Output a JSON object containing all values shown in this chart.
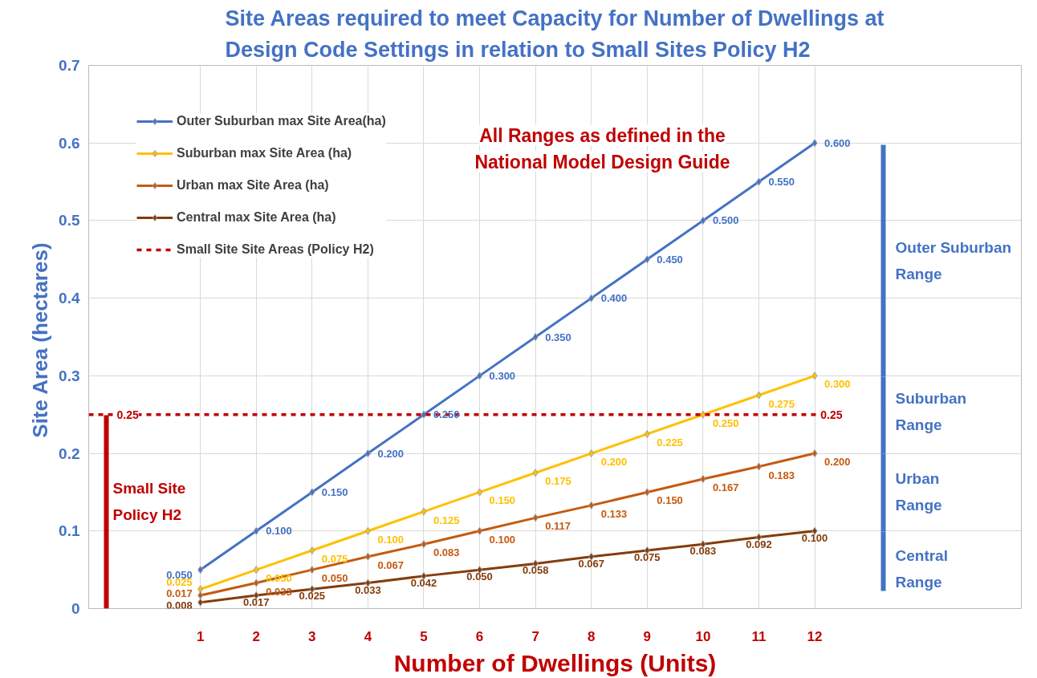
{
  "chart_data": {
    "type": "line",
    "title": "Site Areas required to meet Capacity for Number of Dwellings at\nDesign Code Settings in relation to Small Sites Policy H2",
    "xlabel": "Number of Dwellings (Units)",
    "ylabel": "Site Area  (hectares)",
    "x": [
      1,
      2,
      3,
      4,
      5,
      6,
      7,
      8,
      9,
      10,
      11,
      12
    ],
    "series": [
      {
        "name": "Outer Suburban max Site Area(ha)",
        "color": "#4472c4",
        "values": [
          0.05,
          0.1,
          0.15,
          0.2,
          0.25,
          0.3,
          0.35,
          0.4,
          0.45,
          0.5,
          0.55,
          0.6
        ],
        "value_labels": [
          "0.050",
          "0.100",
          "0.150",
          "0.200",
          "0.250",
          "0.300",
          "0.350",
          "0.400",
          "0.450",
          "0.500",
          "0.550",
          "0.600"
        ]
      },
      {
        "name": "Suburban max Site Area (ha)",
        "color": "#ffc000",
        "values": [
          0.025,
          0.05,
          0.075,
          0.1,
          0.125,
          0.15,
          0.175,
          0.2,
          0.225,
          0.25,
          0.275,
          0.3
        ],
        "value_labels": [
          "0.025",
          "0.050",
          "0.075",
          "0.100",
          "0.125",
          "0.150",
          "0.175",
          "0.200",
          "0.225",
          "0.250",
          "0.275",
          "0.300"
        ]
      },
      {
        "name": "Urban max Site Area (ha)",
        "color": "#c55a11",
        "values": [
          0.017,
          0.033,
          0.05,
          0.067,
          0.083,
          0.1,
          0.117,
          0.133,
          0.15,
          0.167,
          0.183,
          0.2
        ],
        "value_labels": [
          "0.017",
          "0.033",
          "0.050",
          "0.067",
          "0.083",
          "0.100",
          "0.117",
          "0.133",
          "0.150",
          "0.167",
          "0.183",
          "0.200"
        ]
      },
      {
        "name": "Central max Site Area (ha)",
        "color": "#843c0c",
        "values": [
          0.008,
          0.017,
          0.025,
          0.033,
          0.042,
          0.05,
          0.058,
          0.067,
          0.075,
          0.083,
          0.092,
          0.1
        ],
        "value_labels": [
          "0.008",
          "0.017",
          "0.025",
          "0.033",
          "0.042",
          "0.050",
          "0.058",
          "0.067",
          "0.075",
          "0.083",
          "0.092",
          "0.100"
        ]
      }
    ],
    "xlim": [
      -1,
      15.7
    ],
    "xticks": [
      1,
      2,
      3,
      4,
      5,
      6,
      7,
      8,
      9,
      10,
      11,
      12
    ],
    "ylim": [
      0,
      0.7
    ],
    "yticks": [
      {
        "value": 0,
        "label": "0"
      },
      {
        "value": 0.1,
        "label": "0.1"
      },
      {
        "value": 0.2,
        "label": "0.2"
      },
      {
        "value": 0.3,
        "label": "0.3"
      },
      {
        "value": 0.4,
        "label": "0.4"
      },
      {
        "value": 0.5,
        "label": "0.5"
      },
      {
        "value": 0.6,
        "label": "0.6"
      },
      {
        "value": 0.7,
        "label": "0.7"
      }
    ],
    "ref_lines": [
      {
        "axis": "y",
        "value": 0.25,
        "label": "Small Site Site Areas (Policy H2)",
        "color": "#c00000",
        "line_style": "dashed"
      }
    ],
    "annotations": [
      "All Ranges as defined in the\nNational Model Design Guide",
      "Outer Suburban\nRange",
      "Suburban\nRange",
      "Urban\nRange",
      "Central\nRange",
      "Small Site\nPolicy H2",
      {
        "text": "0.25",
        "x": -0.3,
        "y": 0.25
      },
      {
        "text": "0.25",
        "x": 12.3,
        "y": 0.25
      }
    ],
    "data_labels": true,
    "marker": "diamond",
    "line_style": "solid",
    "grid": true,
    "legend": "top left"
  }
}
